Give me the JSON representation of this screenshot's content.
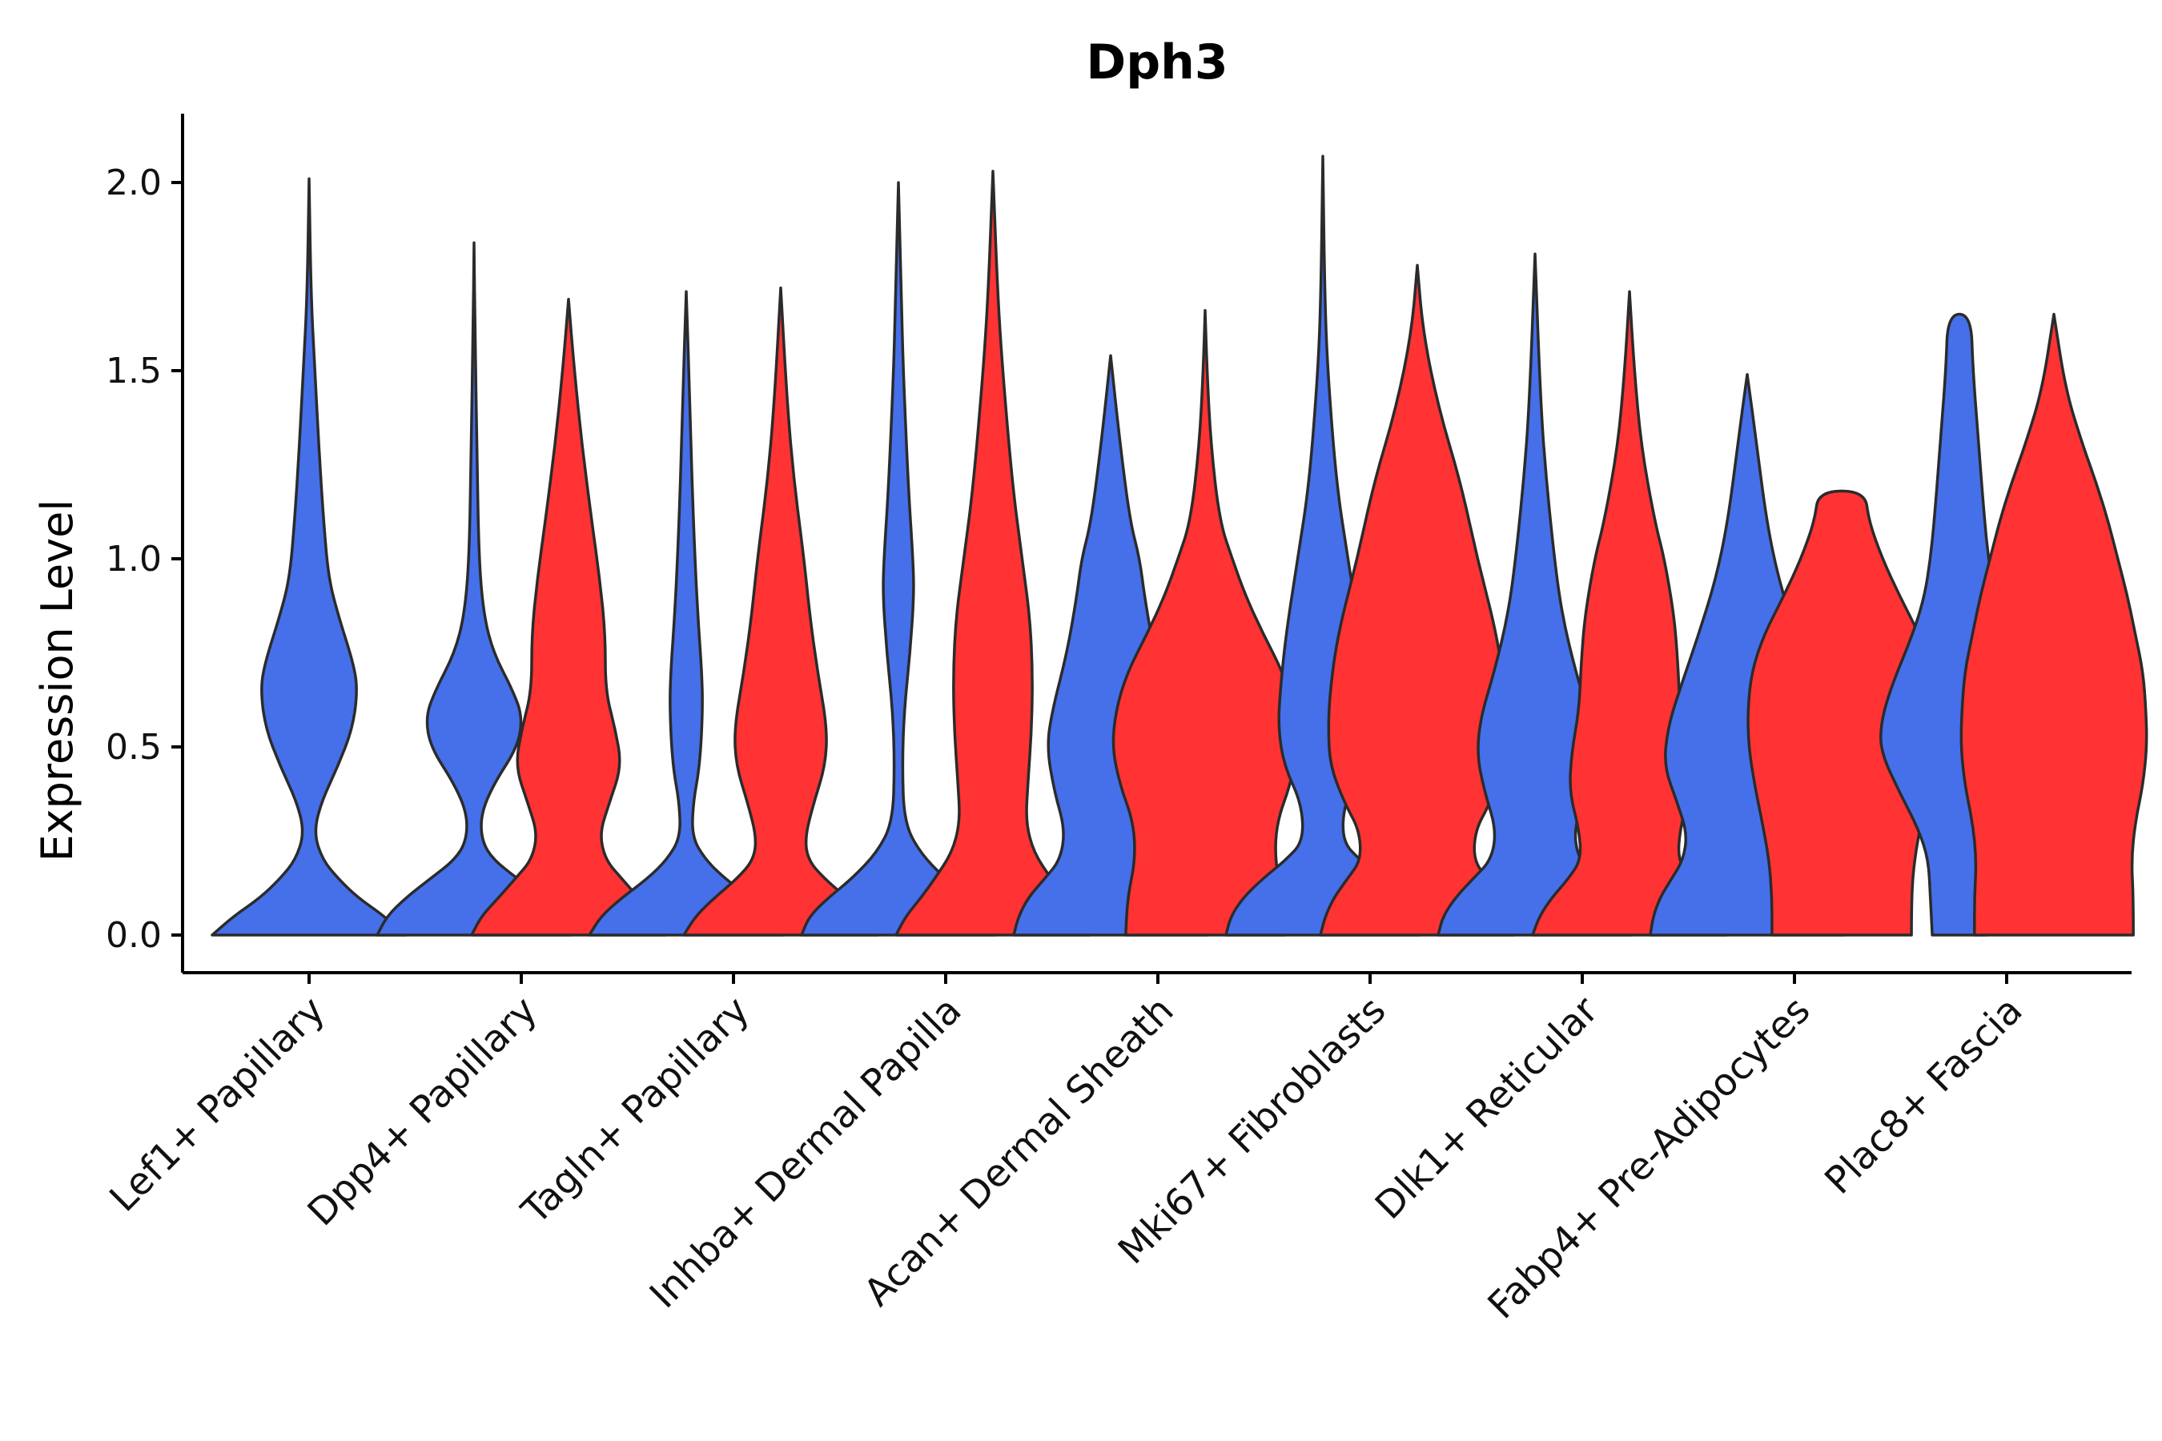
{
  "chart_data": {
    "type": "violin",
    "title": "Dph3",
    "xlabel": "",
    "ylabel": "Expression Level",
    "ylim": [
      -0.1,
      2.2
    ],
    "yticks": [
      "0.0",
      "0.5",
      "1.0",
      "1.5",
      "2.0"
    ],
    "ytick_values": [
      0.0,
      0.5,
      1.0,
      1.5,
      2.0
    ],
    "series_colors": {
      "blue": "#4570EA",
      "red": "#FF3333"
    },
    "categories": [
      "Lef1+ Papillary",
      "Dpp4+ Papillary",
      "Tagln+ Papillary",
      "Inhba+ Dermal Papilla",
      "Acan+ Dermal Sheath",
      "Mki67+ Fibroblasts",
      "Dlk1+ Reticular",
      "Fabp4+ Pre-Adipocytes",
      "Plac8+ Fascia"
    ],
    "violins": [
      {
        "category": 0,
        "series": "blue",
        "min": 0.0,
        "max": 2.01,
        "profile": [
          [
            0.0,
            1.0
          ],
          [
            0.05,
            0.78
          ],
          [
            0.1,
            0.5
          ],
          [
            0.15,
            0.3
          ],
          [
            0.2,
            0.14
          ],
          [
            0.27,
            0.05
          ],
          [
            0.35,
            0.12
          ],
          [
            0.45,
            0.3
          ],
          [
            0.55,
            0.45
          ],
          [
            0.65,
            0.5
          ],
          [
            0.72,
            0.46
          ],
          [
            0.85,
            0.3
          ],
          [
            0.95,
            0.2
          ],
          [
            1.1,
            0.15
          ],
          [
            1.3,
            0.1
          ],
          [
            1.5,
            0.06
          ],
          [
            1.7,
            0.02
          ],
          [
            2.01,
            0.0
          ]
        ]
      },
      {
        "category": 1,
        "series": "blue",
        "min": 0.0,
        "max": 1.84,
        "profile": [
          [
            0.0,
            1.0
          ],
          [
            0.05,
            0.9
          ],
          [
            0.1,
            0.7
          ],
          [
            0.15,
            0.45
          ],
          [
            0.2,
            0.2
          ],
          [
            0.25,
            0.08
          ],
          [
            0.32,
            0.07
          ],
          [
            0.4,
            0.2
          ],
          [
            0.5,
            0.45
          ],
          [
            0.58,
            0.5
          ],
          [
            0.65,
            0.4
          ],
          [
            0.75,
            0.2
          ],
          [
            0.85,
            0.1
          ],
          [
            1.0,
            0.05
          ],
          [
            1.3,
            0.03
          ],
          [
            1.6,
            0.01
          ],
          [
            1.84,
            0.0
          ]
        ]
      },
      {
        "category": 1,
        "series": "red",
        "min": 0.0,
        "max": 1.69,
        "profile": [
          [
            0.0,
            1.0
          ],
          [
            0.05,
            0.9
          ],
          [
            0.1,
            0.72
          ],
          [
            0.15,
            0.55
          ],
          [
            0.2,
            0.38
          ],
          [
            0.27,
            0.32
          ],
          [
            0.35,
            0.42
          ],
          [
            0.45,
            0.55
          ],
          [
            0.55,
            0.48
          ],
          [
            0.65,
            0.38
          ],
          [
            0.8,
            0.38
          ],
          [
            0.95,
            0.32
          ],
          [
            1.1,
            0.24
          ],
          [
            1.3,
            0.14
          ],
          [
            1.5,
            0.06
          ],
          [
            1.69,
            0.0
          ]
        ]
      },
      {
        "category": 2,
        "series": "blue",
        "min": 0.0,
        "max": 1.71,
        "profile": [
          [
            0.0,
            1.0
          ],
          [
            0.05,
            0.88
          ],
          [
            0.1,
            0.66
          ],
          [
            0.15,
            0.4
          ],
          [
            0.2,
            0.2
          ],
          [
            0.26,
            0.06
          ],
          [
            0.35,
            0.07
          ],
          [
            0.45,
            0.14
          ],
          [
            0.6,
            0.17
          ],
          [
            0.7,
            0.16
          ],
          [
            0.85,
            0.12
          ],
          [
            1.0,
            0.09
          ],
          [
            1.2,
            0.06
          ],
          [
            1.4,
            0.04
          ],
          [
            1.71,
            0.0
          ]
        ]
      },
      {
        "category": 2,
        "series": "red",
        "min": 0.0,
        "max": 1.72,
        "profile": [
          [
            0.0,
            1.0
          ],
          [
            0.05,
            0.88
          ],
          [
            0.1,
            0.68
          ],
          [
            0.15,
            0.45
          ],
          [
            0.2,
            0.28
          ],
          [
            0.26,
            0.25
          ],
          [
            0.35,
            0.34
          ],
          [
            0.45,
            0.46
          ],
          [
            0.55,
            0.48
          ],
          [
            0.7,
            0.38
          ],
          [
            0.85,
            0.3
          ],
          [
            1.0,
            0.24
          ],
          [
            1.2,
            0.14
          ],
          [
            1.4,
            0.07
          ],
          [
            1.72,
            0.0
          ]
        ]
      },
      {
        "category": 3,
        "series": "blue",
        "min": 0.0,
        "max": 2.0,
        "profile": [
          [
            0.0,
            1.0
          ],
          [
            0.05,
            0.92
          ],
          [
            0.1,
            0.72
          ],
          [
            0.15,
            0.48
          ],
          [
            0.22,
            0.22
          ],
          [
            0.3,
            0.06
          ],
          [
            0.45,
            0.04
          ],
          [
            0.6,
            0.06
          ],
          [
            0.75,
            0.12
          ],
          [
            0.9,
            0.16
          ],
          [
            1.0,
            0.15
          ],
          [
            1.2,
            0.1
          ],
          [
            1.5,
            0.05
          ],
          [
            1.7,
            0.03
          ],
          [
            2.0,
            0.0
          ]
        ]
      },
      {
        "category": 3,
        "series": "red",
        "min": 0.0,
        "max": 2.03,
        "profile": [
          [
            0.0,
            1.0
          ],
          [
            0.05,
            0.9
          ],
          [
            0.1,
            0.74
          ],
          [
            0.15,
            0.6
          ],
          [
            0.22,
            0.42
          ],
          [
            0.3,
            0.34
          ],
          [
            0.4,
            0.36
          ],
          [
            0.55,
            0.4
          ],
          [
            0.7,
            0.41
          ],
          [
            0.85,
            0.38
          ],
          [
            1.0,
            0.3
          ],
          [
            1.2,
            0.2
          ],
          [
            1.5,
            0.1
          ],
          [
            1.7,
            0.05
          ],
          [
            2.03,
            0.0
          ]
        ]
      },
      {
        "category": 4,
        "series": "blue",
        "min": 0.0,
        "max": 1.54,
        "profile": [
          [
            0.0,
            1.0
          ],
          [
            0.05,
            0.95
          ],
          [
            0.1,
            0.85
          ],
          [
            0.15,
            0.68
          ],
          [
            0.2,
            0.52
          ],
          [
            0.28,
            0.47
          ],
          [
            0.38,
            0.58
          ],
          [
            0.5,
            0.66
          ],
          [
            0.6,
            0.6
          ],
          [
            0.75,
            0.45
          ],
          [
            0.9,
            0.35
          ],
          [
            1.0,
            0.3
          ],
          [
            1.1,
            0.2
          ],
          [
            1.3,
            0.1
          ],
          [
            1.54,
            0.0
          ]
        ]
      },
      {
        "category": 4,
        "series": "red",
        "min": 0.0,
        "max": 1.66,
        "profile": [
          [
            0.0,
            0.82
          ],
          [
            0.1,
            0.8
          ],
          [
            0.2,
            0.72
          ],
          [
            0.3,
            0.74
          ],
          [
            0.4,
            0.88
          ],
          [
            0.5,
            0.96
          ],
          [
            0.6,
            0.92
          ],
          [
            0.7,
            0.8
          ],
          [
            0.8,
            0.6
          ],
          [
            0.9,
            0.42
          ],
          [
            1.0,
            0.28
          ],
          [
            1.1,
            0.15
          ],
          [
            1.3,
            0.06
          ],
          [
            1.5,
            0.02
          ],
          [
            1.66,
            0.0
          ]
        ]
      },
      {
        "category": 5,
        "series": "blue",
        "min": 0.0,
        "max": 2.07,
        "profile": [
          [
            0.0,
            1.0
          ],
          [
            0.05,
            0.95
          ],
          [
            0.1,
            0.82
          ],
          [
            0.15,
            0.62
          ],
          [
            0.2,
            0.38
          ],
          [
            0.25,
            0.2
          ],
          [
            0.35,
            0.22
          ],
          [
            0.45,
            0.4
          ],
          [
            0.55,
            0.46
          ],
          [
            0.65,
            0.44
          ],
          [
            0.8,
            0.38
          ],
          [
            1.0,
            0.26
          ],
          [
            1.2,
            0.14
          ],
          [
            1.5,
            0.05
          ],
          [
            1.7,
            0.02
          ],
          [
            2.07,
            0.0
          ]
        ]
      },
      {
        "category": 5,
        "series": "red",
        "min": 0.0,
        "max": 1.78,
        "profile": [
          [
            0.0,
            1.0
          ],
          [
            0.05,
            0.95
          ],
          [
            0.1,
            0.86
          ],
          [
            0.15,
            0.72
          ],
          [
            0.2,
            0.58
          ],
          [
            0.28,
            0.6
          ],
          [
            0.35,
            0.75
          ],
          [
            0.45,
            0.9
          ],
          [
            0.55,
            0.92
          ],
          [
            0.65,
            0.9
          ],
          [
            0.8,
            0.82
          ],
          [
            1.0,
            0.62
          ],
          [
            1.2,
            0.45
          ],
          [
            1.4,
            0.22
          ],
          [
            1.6,
            0.06
          ],
          [
            1.78,
            0.0
          ]
        ]
      },
      {
        "category": 6,
        "series": "blue",
        "min": 0.0,
        "max": 1.81,
        "profile": [
          [
            0.0,
            1.0
          ],
          [
            0.05,
            0.95
          ],
          [
            0.1,
            0.82
          ],
          [
            0.15,
            0.64
          ],
          [
            0.2,
            0.45
          ],
          [
            0.28,
            0.4
          ],
          [
            0.38,
            0.52
          ],
          [
            0.48,
            0.6
          ],
          [
            0.58,
            0.56
          ],
          [
            0.7,
            0.42
          ],
          [
            0.85,
            0.28
          ],
          [
            1.0,
            0.2
          ],
          [
            1.2,
            0.12
          ],
          [
            1.4,
            0.06
          ],
          [
            1.81,
            0.0
          ]
        ]
      },
      {
        "category": 6,
        "series": "red",
        "min": 0.0,
        "max": 1.71,
        "profile": [
          [
            0.0,
            1.0
          ],
          [
            0.05,
            0.93
          ],
          [
            0.1,
            0.8
          ],
          [
            0.15,
            0.63
          ],
          [
            0.2,
            0.5
          ],
          [
            0.28,
            0.52
          ],
          [
            0.38,
            0.62
          ],
          [
            0.48,
            0.6
          ],
          [
            0.6,
            0.52
          ],
          [
            0.72,
            0.5
          ],
          [
            0.85,
            0.46
          ],
          [
            1.0,
            0.36
          ],
          [
            1.1,
            0.26
          ],
          [
            1.3,
            0.12
          ],
          [
            1.5,
            0.05
          ],
          [
            1.71,
            0.0
          ]
        ]
      },
      {
        "category": 7,
        "series": "blue",
        "min": 0.0,
        "max": 1.49,
        "profile": [
          [
            0.0,
            1.0
          ],
          [
            0.05,
            0.97
          ],
          [
            0.1,
            0.9
          ],
          [
            0.15,
            0.78
          ],
          [
            0.2,
            0.66
          ],
          [
            0.27,
            0.62
          ],
          [
            0.35,
            0.72
          ],
          [
            0.45,
            0.86
          ],
          [
            0.55,
            0.82
          ],
          [
            0.65,
            0.7
          ],
          [
            0.8,
            0.5
          ],
          [
            0.95,
            0.32
          ],
          [
            1.1,
            0.2
          ],
          [
            1.3,
            0.1
          ],
          [
            1.49,
            0.0
          ]
        ]
      },
      {
        "category": 7,
        "series": "red",
        "min": 0.0,
        "max": 1.18,
        "profile": [
          [
            0.0,
            0.72
          ],
          [
            0.1,
            0.72
          ],
          [
            0.2,
            0.75
          ],
          [
            0.3,
            0.82
          ],
          [
            0.4,
            0.9
          ],
          [
            0.5,
            0.96
          ],
          [
            0.6,
            0.97
          ],
          [
            0.7,
            0.93
          ],
          [
            0.8,
            0.8
          ],
          [
            0.9,
            0.6
          ],
          [
            1.0,
            0.42
          ],
          [
            1.1,
            0.28
          ],
          [
            1.18,
            0.24
          ]
        ]
      },
      {
        "category": 8,
        "series": "blue",
        "min": 0.0,
        "max": 1.65,
        "profile": [
          [
            0.0,
            0.28
          ],
          [
            0.1,
            0.3
          ],
          [
            0.2,
            0.32
          ],
          [
            0.28,
            0.42
          ],
          [
            0.38,
            0.62
          ],
          [
            0.48,
            0.8
          ],
          [
            0.55,
            0.82
          ],
          [
            0.65,
            0.72
          ],
          [
            0.8,
            0.48
          ],
          [
            0.9,
            0.36
          ],
          [
            1.0,
            0.3
          ],
          [
            1.1,
            0.26
          ],
          [
            1.3,
            0.2
          ],
          [
            1.5,
            0.14
          ],
          [
            1.65,
            0.12
          ]
        ]
      },
      {
        "category": 8,
        "series": "red",
        "min": 0.0,
        "max": 1.65,
        "profile": [
          [
            0.0,
            0.82
          ],
          [
            0.1,
            0.82
          ],
          [
            0.2,
            0.8
          ],
          [
            0.3,
            0.84
          ],
          [
            0.4,
            0.92
          ],
          [
            0.5,
            0.96
          ],
          [
            0.6,
            0.95
          ],
          [
            0.7,
            0.92
          ],
          [
            0.8,
            0.84
          ],
          [
            0.9,
            0.76
          ],
          [
            1.0,
            0.66
          ],
          [
            1.1,
            0.56
          ],
          [
            1.2,
            0.44
          ],
          [
            1.3,
            0.3
          ],
          [
            1.45,
            0.12
          ],
          [
            1.65,
            0.0
          ]
        ]
      }
    ]
  }
}
